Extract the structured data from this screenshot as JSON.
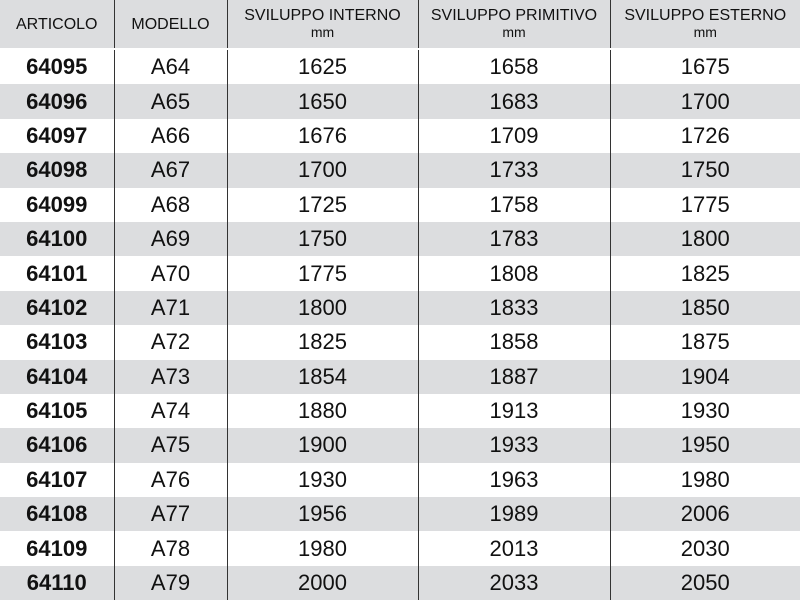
{
  "headers": [
    {
      "label": "ARTICOLO",
      "unit": ""
    },
    {
      "label": "MODELLO",
      "unit": ""
    },
    {
      "label": "SVILUPPO INTERNO",
      "unit": "mm"
    },
    {
      "label": "SVILUPPO PRIMITIVO",
      "unit": "mm"
    },
    {
      "label": "SVILUPPO ESTERNO",
      "unit": "mm"
    }
  ],
  "rows": [
    [
      "64095",
      "A64",
      "1625",
      "1658",
      "1675"
    ],
    [
      "64096",
      "A65",
      "1650",
      "1683",
      "1700"
    ],
    [
      "64097",
      "A66",
      "1676",
      "1709",
      "1726"
    ],
    [
      "64098",
      "A67",
      "1700",
      "1733",
      "1750"
    ],
    [
      "64099",
      "A68",
      "1725",
      "1758",
      "1775"
    ],
    [
      "64100",
      "A69",
      "1750",
      "1783",
      "1800"
    ],
    [
      "64101",
      "A70",
      "1775",
      "1808",
      "1825"
    ],
    [
      "64102",
      "A71",
      "1800",
      "1833",
      "1850"
    ],
    [
      "64103",
      "A72",
      "1825",
      "1858",
      "1875"
    ],
    [
      "64104",
      "A73",
      "1854",
      "1887",
      "1904"
    ],
    [
      "64105",
      "A74",
      "1880",
      "1913",
      "1930"
    ],
    [
      "64106",
      "A75",
      "1900",
      "1933",
      "1950"
    ],
    [
      "64107",
      "A76",
      "1930",
      "1963",
      "1980"
    ],
    [
      "64108",
      "A77",
      "1956",
      "1989",
      "2006"
    ],
    [
      "64109",
      "A78",
      "1980",
      "2013",
      "2030"
    ],
    [
      "64110",
      "A79",
      "2000",
      "2033",
      "2050"
    ]
  ],
  "colors": {
    "stripe": "#dcdddf",
    "border": "#333333"
  }
}
